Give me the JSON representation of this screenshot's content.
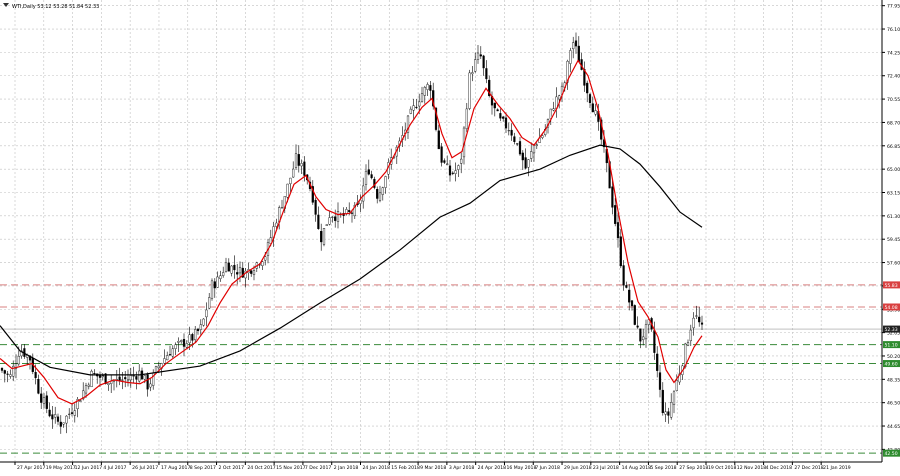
{
  "header": {
    "symbol_info": "WTI,Daily  53.12 53.28 51.84 52.33",
    "icon": "triangle-down-icon"
  },
  "colors": {
    "background": "#ffffff",
    "candle": "#000000",
    "grid": "#c0c0c0",
    "ema_fast": "#e00000",
    "ema_slow": "#000000",
    "resistance_line": "#d98080",
    "support_line": "#3a8a3a",
    "resistance_tag": "#d94040",
    "support_tag": "#2e8b2e",
    "price_tag": "#222222"
  },
  "chart_data": {
    "type": "candlestick",
    "y_range": [
      41.8,
      78.4
    ],
    "y_ticks": [
      "77.95",
      "76.10",
      "74.25",
      "72.40",
      "70.55",
      "68.70",
      "66.85",
      "65.00",
      "63.15",
      "61.30",
      "59.45",
      "57.60",
      "55.75",
      "53.90",
      "52.05",
      "50.20",
      "48.35",
      "46.50",
      "44.65",
      "42.80"
    ],
    "x_ticks": [
      "27 Apr 2017",
      "19 May 2017",
      "12 Jun 2017",
      "4 Jul 2017",
      "26 Jul 2017",
      "17 Aug 2017",
      "8 Sep 2017",
      "2 Oct 2017",
      "24 Oct 2017",
      "15 Nov 2017",
      "7 Dec 2017",
      "2 Jan 2018",
      "24 Jan 2018",
      "15 Feb 2018",
      "9 Mar 2018",
      "3 Apr 2018",
      "24 Apr 2018",
      "16 May 2018",
      "7 Jun 2018",
      "29 Jun 2018",
      "23 Jul 2018",
      "14 Aug 2018",
      "5 Sep 2018",
      "27 Sep 2018",
      "19 Oct 2018",
      "12 Nov 2018",
      "4 Dec 2018",
      "27 Dec 2018",
      "21 Jan 2019"
    ],
    "close_path": [
      [
        0,
        49.2
      ],
      [
        10,
        48.5
      ],
      [
        20,
        50.8
      ],
      [
        30,
        50.0
      ],
      [
        40,
        47.1
      ],
      [
        50,
        45.6
      ],
      [
        60,
        44.8
      ],
      [
        68,
        45.5
      ],
      [
        80,
        46.9
      ],
      [
        92,
        48.8
      ],
      [
        104,
        48.4
      ],
      [
        116,
        48.2
      ],
      [
        128,
        48.4
      ],
      [
        140,
        48.9
      ],
      [
        148,
        47.8
      ],
      [
        160,
        49.6
      ],
      [
        170,
        50.6
      ],
      [
        182,
        51.2
      ],
      [
        192,
        51.6
      ],
      [
        202,
        52.5
      ],
      [
        212,
        55.8
      ],
      [
        218,
        56.2
      ],
      [
        226,
        57.5
      ],
      [
        236,
        57.0
      ],
      [
        246,
        56.8
      ],
      [
        256,
        57.5
      ],
      [
        266,
        58.3
      ],
      [
        276,
        61.0
      ],
      [
        286,
        63.2
      ],
      [
        296,
        65.8
      ],
      [
        306,
        64.6
      ],
      [
        314,
        62.5
      ],
      [
        320,
        59.3
      ],
      [
        330,
        61.5
      ],
      [
        340,
        61.2
      ],
      [
        350,
        61.5
      ],
      [
        358,
        61.9
      ],
      [
        368,
        65.2
      ],
      [
        378,
        62.8
      ],
      [
        390,
        65.6
      ],
      [
        400,
        67.1
      ],
      [
        410,
        69.2
      ],
      [
        420,
        70.8
      ],
      [
        430,
        71.8
      ],
      [
        440,
        66.0
      ],
      [
        450,
        64.6
      ],
      [
        460,
        65.1
      ],
      [
        470,
        72.6
      ],
      [
        480,
        74.2
      ],
      [
        490,
        70.4
      ],
      [
        500,
        68.8
      ],
      [
        510,
        68.2
      ],
      [
        520,
        66.4
      ],
      [
        526,
        65.0
      ],
      [
        534,
        66.9
      ],
      [
        544,
        67.9
      ],
      [
        554,
        70.2
      ],
      [
        564,
        71.5
      ],
      [
        572,
        75.3
      ],
      [
        578,
        74.0
      ],
      [
        586,
        71.6
      ],
      [
        596,
        69.2
      ],
      [
        606,
        65.6
      ],
      [
        616,
        60.4
      ],
      [
        624,
        55.9
      ],
      [
        632,
        53.8
      ],
      [
        640,
        51.5
      ],
      [
        650,
        52.8
      ],
      [
        656,
        49.6
      ],
      [
        662,
        46.2
      ],
      [
        667,
        45.1
      ],
      [
        672,
        46.8
      ],
      [
        680,
        49.1
      ],
      [
        688,
        51.6
      ],
      [
        694,
        53.6
      ],
      [
        702,
        52.3
      ]
    ],
    "series": [
      {
        "kind": "ema_fast",
        "points": [
          [
            0,
            50.0
          ],
          [
            12,
            49.2
          ],
          [
            22,
            49.4
          ],
          [
            32,
            49.6
          ],
          [
            44,
            48.5
          ],
          [
            58,
            46.9
          ],
          [
            72,
            46.4
          ],
          [
            86,
            47.0
          ],
          [
            100,
            47.9
          ],
          [
            114,
            48.3
          ],
          [
            128,
            48.1
          ],
          [
            140,
            48.0
          ],
          [
            152,
            48.5
          ],
          [
            166,
            49.6
          ],
          [
            180,
            50.4
          ],
          [
            196,
            51.3
          ],
          [
            208,
            52.6
          ],
          [
            220,
            54.4
          ],
          [
            232,
            55.9
          ],
          [
            246,
            56.8
          ],
          [
            260,
            57.5
          ],
          [
            272,
            59.2
          ],
          [
            284,
            61.8
          ],
          [
            294,
            63.8
          ],
          [
            306,
            64.5
          ],
          [
            316,
            62.8
          ],
          [
            326,
            61.8
          ],
          [
            338,
            61.4
          ],
          [
            350,
            61.5
          ],
          [
            362,
            62.8
          ],
          [
            374,
            63.7
          ],
          [
            386,
            64.8
          ],
          [
            398,
            66.7
          ],
          [
            410,
            68.5
          ],
          [
            422,
            69.9
          ],
          [
            432,
            70.6
          ],
          [
            442,
            67.8
          ],
          [
            452,
            65.9
          ],
          [
            462,
            66.4
          ],
          [
            474,
            69.8
          ],
          [
            486,
            71.4
          ],
          [
            498,
            70.1
          ],
          [
            510,
            69.0
          ],
          [
            522,
            67.5
          ],
          [
            534,
            66.9
          ],
          [
            546,
            68.2
          ],
          [
            558,
            70.0
          ],
          [
            568,
            72.1
          ],
          [
            578,
            73.6
          ],
          [
            588,
            72.4
          ],
          [
            598,
            69.8
          ],
          [
            608,
            66.2
          ],
          [
            618,
            61.7
          ],
          [
            628,
            57.6
          ],
          [
            638,
            54.5
          ],
          [
            648,
            53.3
          ],
          [
            658,
            51.7
          ],
          [
            666,
            49.1
          ],
          [
            674,
            48.1
          ],
          [
            684,
            49.2
          ],
          [
            694,
            50.9
          ],
          [
            702,
            51.8
          ]
        ]
      },
      {
        "kind": "ema_slow",
        "points": [
          [
            0,
            52.6
          ],
          [
            20,
            50.6
          ],
          [
            50,
            49.3
          ],
          [
            90,
            48.7
          ],
          [
            140,
            48.7
          ],
          [
            200,
            49.4
          ],
          [
            240,
            50.6
          ],
          [
            280,
            52.4
          ],
          [
            320,
            54.4
          ],
          [
            360,
            56.3
          ],
          [
            400,
            58.6
          ],
          [
            440,
            61.2
          ],
          [
            470,
            62.3
          ],
          [
            500,
            64.1
          ],
          [
            540,
            65.0
          ],
          [
            570,
            66.1
          ],
          [
            600,
            66.9
          ],
          [
            620,
            66.6
          ],
          [
            640,
            65.4
          ],
          [
            660,
            63.6
          ],
          [
            680,
            61.6
          ],
          [
            702,
            60.4
          ]
        ]
      }
    ],
    "horizontal_lines": [
      {
        "kind": "resistance",
        "value": 55.83,
        "label": "55.83"
      },
      {
        "kind": "resistance",
        "value": 54.08,
        "label": "54.08"
      },
      {
        "kind": "support",
        "value": 51.1,
        "label": "51.10"
      },
      {
        "kind": "support",
        "value": 49.6,
        "label": "49.60"
      },
      {
        "kind": "support",
        "value": 42.5,
        "label": "42.50"
      }
    ],
    "current_price": {
      "value": 52.33,
      "label": "52.33"
    },
    "grid": true
  }
}
